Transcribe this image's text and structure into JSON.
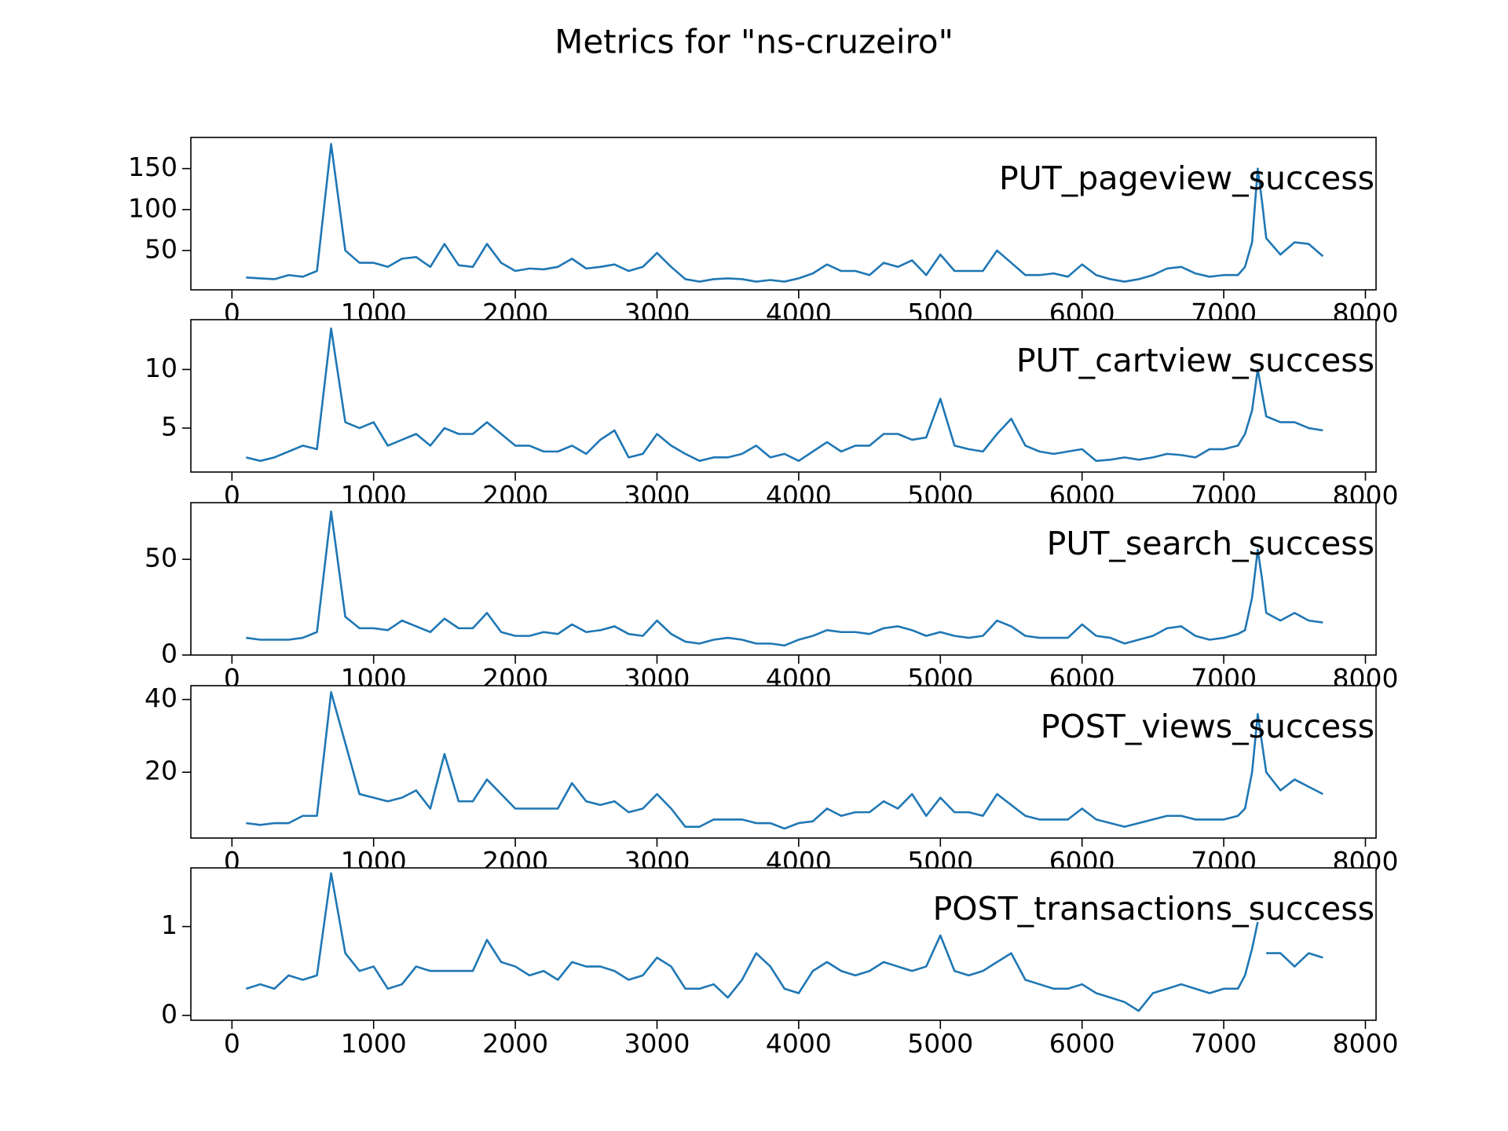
{
  "title": "Metrics for \"ns-cruzeiro\"",
  "chart_data": [
    {
      "type": "line",
      "annotation": "PUT_pageview_success",
      "x": [
        100,
        200,
        300,
        400,
        500,
        600,
        700,
        800,
        900,
        1000,
        1100,
        1200,
        1300,
        1400,
        1500,
        1600,
        1700,
        1800,
        1900,
        2000,
        2100,
        2200,
        2300,
        2400,
        2500,
        2600,
        2700,
        2800,
        2900,
        3000,
        3100,
        3200,
        3300,
        3400,
        3500,
        3600,
        3700,
        3800,
        3900,
        4000,
        4100,
        4200,
        4300,
        4400,
        4500,
        4600,
        4700,
        4800,
        4900,
        5000,
        5100,
        5200,
        5300,
        5400,
        5500,
        5600,
        5700,
        5800,
        5900,
        6000,
        6100,
        6200,
        6300,
        6400,
        6500,
        6600,
        6700,
        6800,
        6900,
        7000,
        7100,
        7150,
        7200,
        7240,
        7270,
        7300,
        7400,
        7500,
        7600,
        7700
      ],
      "series": [
        {
          "color": "#1f77b4",
          "values": [
            17,
            16,
            15,
            20,
            18,
            25,
            180,
            50,
            35,
            35,
            30,
            40,
            42,
            30,
            58,
            32,
            30,
            58,
            35,
            25,
            28,
            27,
            30,
            40,
            28,
            30,
            33,
            25,
            30,
            47,
            30,
            15,
            12,
            15,
            16,
            15,
            12,
            14,
            12,
            16,
            22,
            33,
            25,
            25,
            20,
            35,
            30,
            38,
            20,
            45,
            25,
            25,
            25,
            50,
            35,
            20,
            20,
            22,
            18,
            33,
            20,
            15,
            12,
            15,
            20,
            28,
            30,
            22,
            18,
            20,
            20,
            30,
            60,
            150,
            110,
            65,
            45,
            60,
            58,
            43
          ]
        }
      ],
      "xlim": [
        -290,
        8075
      ],
      "xticks": [
        0,
        1000,
        2000,
        3000,
        4000,
        5000,
        6000,
        7000,
        8000
      ],
      "ylim": [
        2,
        188
      ],
      "yticks": [
        50,
        100,
        150
      ]
    },
    {
      "type": "line",
      "annotation": "PUT_cartview_success",
      "x": [
        100,
        200,
        300,
        400,
        500,
        600,
        700,
        800,
        900,
        1000,
        1100,
        1200,
        1300,
        1400,
        1500,
        1600,
        1700,
        1800,
        1900,
        2000,
        2100,
        2200,
        2300,
        2400,
        2500,
        2600,
        2700,
        2800,
        2900,
        3000,
        3100,
        3200,
        3300,
        3400,
        3500,
        3600,
        3700,
        3800,
        3900,
        4000,
        4100,
        4200,
        4300,
        4400,
        4500,
        4600,
        4700,
        4800,
        4900,
        5000,
        5100,
        5200,
        5300,
        5400,
        5500,
        5600,
        5700,
        5800,
        5900,
        6000,
        6100,
        6200,
        6300,
        6400,
        6500,
        6600,
        6700,
        6800,
        6900,
        7000,
        7100,
        7150,
        7200,
        7240,
        7270,
        7300,
        7400,
        7500,
        7600,
        7700
      ],
      "series": [
        {
          "color": "#1f77b4",
          "values": [
            2.5,
            2.2,
            2.5,
            3,
            3.5,
            3.2,
            13.5,
            5.5,
            5,
            5.5,
            3.5,
            4,
            4.5,
            3.5,
            5,
            4.5,
            4.5,
            5.5,
            4.5,
            3.5,
            3.5,
            3,
            3,
            3.5,
            2.8,
            4,
            4.8,
            2.5,
            2.8,
            4.5,
            3.5,
            2.8,
            2.2,
            2.5,
            2.5,
            2.8,
            3.5,
            2.5,
            2.8,
            2.2,
            3,
            3.8,
            3,
            3.5,
            3.5,
            4.5,
            4.5,
            4,
            4.2,
            7.5,
            3.5,
            3.2,
            3,
            4.5,
            5.8,
            3.5,
            3,
            2.8,
            3,
            3.2,
            2.2,
            2.3,
            2.5,
            2.3,
            2.5,
            2.8,
            2.7,
            2.5,
            3.2,
            3.2,
            3.5,
            4.5,
            6.5,
            10,
            8,
            6,
            5.5,
            5.5,
            5,
            4.8
          ]
        }
      ],
      "xlim": [
        -290,
        8075
      ],
      "xticks": [
        0,
        1000,
        2000,
        3000,
        4000,
        5000,
        6000,
        7000,
        8000
      ],
      "ylim": [
        1.25,
        14.25
      ],
      "yticks": [
        5,
        10
      ]
    },
    {
      "type": "line",
      "annotation": "PUT_search_success",
      "x": [
        100,
        200,
        300,
        400,
        500,
        600,
        700,
        800,
        900,
        1000,
        1100,
        1200,
        1300,
        1400,
        1500,
        1600,
        1700,
        1800,
        1900,
        2000,
        2100,
        2200,
        2300,
        2400,
        2500,
        2600,
        2700,
        2800,
        2900,
        3000,
        3100,
        3200,
        3300,
        3400,
        3500,
        3600,
        3700,
        3800,
        3900,
        4000,
        4100,
        4200,
        4300,
        4400,
        4500,
        4600,
        4700,
        4800,
        4900,
        5000,
        5100,
        5200,
        5300,
        5400,
        5500,
        5600,
        5700,
        5800,
        5900,
        6000,
        6100,
        6200,
        6300,
        6400,
        6500,
        6600,
        6700,
        6800,
        6900,
        7000,
        7100,
        7150,
        7200,
        7240,
        7270,
        7300,
        7400,
        7500,
        7600,
        7700
      ],
      "series": [
        {
          "color": "#1f77b4",
          "values": [
            9,
            8,
            8,
            8,
            9,
            12,
            75,
            20,
            14,
            14,
            13,
            18,
            15,
            12,
            19,
            14,
            14,
            22,
            12,
            10,
            10,
            12,
            11,
            16,
            12,
            13,
            15,
            11,
            10,
            18,
            11,
            7,
            6,
            8,
            9,
            8,
            6,
            6,
            5,
            8,
            10,
            13,
            12,
            12,
            11,
            14,
            15,
            13,
            10,
            12,
            10,
            9,
            10,
            18,
            15,
            10,
            9,
            9,
            9,
            16,
            10,
            9,
            6,
            8,
            10,
            14,
            15,
            10,
            8,
            9,
            11,
            13,
            30,
            55,
            40,
            22,
            18,
            22,
            18,
            17
          ]
        }
      ],
      "xlim": [
        -290,
        8075
      ],
      "xticks": [
        0,
        1000,
        2000,
        3000,
        4000,
        5000,
        6000,
        7000,
        8000
      ],
      "ylim": [
        0,
        79.6
      ],
      "yticks": [
        0,
        50
      ]
    },
    {
      "type": "line",
      "annotation": "POST_views_success",
      "x": [
        100,
        200,
        300,
        400,
        500,
        600,
        700,
        800,
        900,
        1000,
        1100,
        1200,
        1300,
        1400,
        1500,
        1600,
        1700,
        1800,
        1900,
        2000,
        2100,
        2200,
        2300,
        2400,
        2500,
        2600,
        2700,
        2800,
        2900,
        3000,
        3100,
        3200,
        3300,
        3400,
        3500,
        3600,
        3700,
        3800,
        3900,
        4000,
        4100,
        4200,
        4300,
        4400,
        4500,
        4600,
        4700,
        4800,
        4900,
        5000,
        5100,
        5200,
        5300,
        5400,
        5500,
        5600,
        5700,
        5800,
        5900,
        6000,
        6100,
        6200,
        6300,
        6400,
        6500,
        6600,
        6700,
        6800,
        6900,
        7000,
        7100,
        7150,
        7200,
        7240,
        7270,
        7300,
        7400,
        7500,
        7600,
        7700
      ],
      "series": [
        {
          "color": "#1f77b4",
          "values": [
            6,
            5.5,
            6,
            6,
            8,
            8,
            42,
            28,
            14,
            13,
            12,
            13,
            15,
            10,
            25,
            12,
            12,
            18,
            14,
            10,
            10,
            10,
            10,
            17,
            12,
            11,
            12,
            9,
            10,
            14,
            10,
            5,
            5,
            7,
            7,
            7,
            6,
            6,
            4.5,
            6,
            6.5,
            10,
            8,
            9,
            9,
            12,
            10,
            14,
            8,
            13,
            9,
            9,
            8,
            14,
            11,
            8,
            7,
            7,
            7,
            10,
            7,
            6,
            5,
            6,
            7,
            8,
            8,
            7,
            7,
            7,
            8,
            10,
            20,
            36,
            28,
            20,
            15,
            18,
            16,
            14
          ]
        }
      ],
      "xlim": [
        -290,
        8075
      ],
      "xticks": [
        0,
        1000,
        2000,
        3000,
        4000,
        5000,
        6000,
        7000,
        8000
      ],
      "ylim": [
        1.9,
        43.8
      ],
      "yticks": [
        20,
        40
      ]
    },
    {
      "type": "line",
      "annotation": "POST_transactions_success",
      "x": [
        100,
        200,
        300,
        400,
        500,
        600,
        700,
        800,
        900,
        1000,
        1100,
        1200,
        1300,
        1400,
        1500,
        1600,
        1700,
        1800,
        1900,
        2000,
        2100,
        2200,
        2300,
        2400,
        2500,
        2600,
        2700,
        2800,
        2900,
        3000,
        3100,
        3200,
        3300,
        3400,
        3500,
        3600,
        3700,
        3800,
        3900,
        4000,
        4100,
        4200,
        4300,
        4400,
        4500,
        4600,
        4700,
        4800,
        4900,
        5000,
        5100,
        5200,
        5300,
        5400,
        5500,
        5600,
        5700,
        5800,
        5900,
        6000,
        6100,
        6200,
        6300,
        6400,
        6500,
        6600,
        6700,
        6800,
        6900,
        7000,
        7100,
        7150,
        7200,
        7240,
        7270,
        7300,
        7400,
        7500,
        7600,
        7700
      ],
      "series": [
        {
          "color": "#1f77b4",
          "values": [
            0.3,
            0.35,
            0.3,
            0.45,
            0.4,
            0.45,
            1.6,
            0.7,
            0.5,
            0.55,
            0.3,
            0.35,
            0.55,
            0.5,
            0.5,
            0.5,
            0.5,
            0.85,
            0.6,
            0.55,
            0.45,
            0.5,
            0.4,
            0.6,
            0.55,
            0.55,
            0.5,
            0.4,
            0.45,
            0.65,
            0.55,
            0.3,
            0.3,
            0.35,
            0.2,
            0.4,
            0.7,
            0.55,
            0.3,
            0.25,
            0.5,
            0.6,
            0.5,
            0.45,
            0.5,
            0.6,
            0.55,
            0.5,
            0.55,
            0.9,
            0.5,
            0.45,
            0.5,
            0.6,
            0.7,
            0.4,
            0.35,
            0.3,
            0.3,
            0.35,
            0.25,
            0.2,
            0.15,
            0.05,
            0.25,
            0.3,
            0.35,
            0.3,
            0.25,
            0.3,
            0.3,
            0.45,
            0.75,
            1.05,
            null,
            0.7,
            0.7,
            0.55,
            0.7,
            0.65
          ]
        }
      ],
      "xlim": [
        -290,
        8075
      ],
      "xticks": [
        0,
        1000,
        2000,
        3000,
        4000,
        5000,
        6000,
        7000,
        8000
      ],
      "ylim": [
        -0.055,
        1.66
      ],
      "yticks": [
        0,
        1
      ]
    }
  ]
}
